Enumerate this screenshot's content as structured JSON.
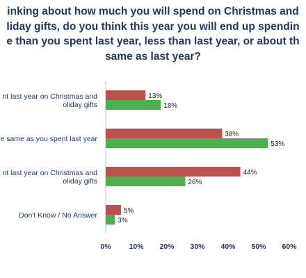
{
  "chart_data": {
    "type": "bar",
    "orientation": "horizontal",
    "title_lines": [
      "inking about how much you will spend on Christmas and",
      "liday gifts, do you think this year you will end up spendin",
      "e than you spent last year, less than last year, or about th",
      "same as last year?"
    ],
    "categories": [
      [
        "nt last year on Christmas and",
        "oliday gifts"
      ],
      [
        "e same as you spent last year"
      ],
      [
        "nt last year on Christmas and",
        "oliday gifts"
      ],
      [
        "Don't Know / No Answer"
      ]
    ],
    "series": [
      {
        "color": "#c0504d",
        "values": [
          13,
          38,
          44,
          5
        ]
      },
      {
        "color": "#4caf50",
        "values": [
          18,
          53,
          26,
          3
        ]
      }
    ],
    "xlim": [
      0,
      60
    ],
    "xticks": [
      "0%",
      "10%",
      "20%",
      "30%",
      "40%",
      "50%",
      "60%"
    ],
    "value_suffix": "%",
    "grid": false,
    "legend": "none"
  }
}
